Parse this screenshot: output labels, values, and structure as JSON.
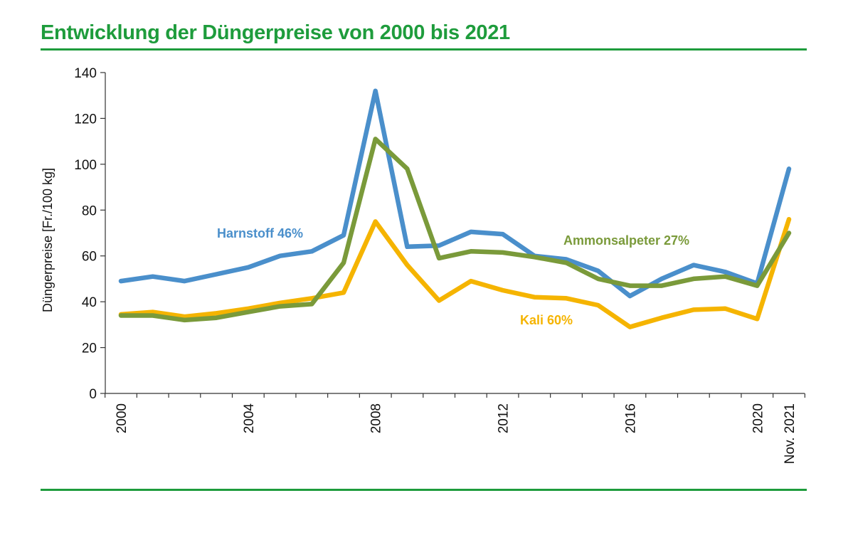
{
  "title": "Entwicklung der Düngerpreise von 2000 bis 2021",
  "chart_data": {
    "type": "line",
    "title": "Entwicklung der Düngerpreise von 2000 bis 2021",
    "xlabel": "",
    "ylabel": "Düngerpreise [Fr./100 kg]",
    "ylim": [
      0,
      140
    ],
    "yticks": [
      0,
      20,
      40,
      60,
      80,
      100,
      120,
      140
    ],
    "x": [
      2000,
      2001,
      2002,
      2003,
      2004,
      2005,
      2006,
      2007,
      2008,
      2009,
      2010,
      2011,
      2012,
      2013,
      2014,
      2015,
      2016,
      2017,
      2018,
      2019,
      2020,
      2021
    ],
    "xtick_labels": [
      {
        "x": 2000,
        "label": "2000"
      },
      {
        "x": 2004,
        "label": "2004"
      },
      {
        "x": 2008,
        "label": "2008"
      },
      {
        "x": 2012,
        "label": "2012"
      },
      {
        "x": 2016,
        "label": "2016"
      },
      {
        "x": 2020,
        "label": "2020"
      },
      {
        "x": 2021,
        "label": "Nov. 2021"
      }
    ],
    "grid": false,
    "series": [
      {
        "name": "Harnstoff 46%",
        "color": "#4a8fcb",
        "values": [
          49,
          51,
          49,
          52,
          55,
          60,
          62,
          69,
          132,
          64,
          64.5,
          70.5,
          69.5,
          60,
          58.5,
          53.5,
          42.5,
          50,
          56,
          53,
          48,
          98
        ]
      },
      {
        "name": "Kali 60%",
        "color": "#f5b400",
        "values": [
          34.5,
          35.5,
          33.5,
          35,
          37,
          39.5,
          41.5,
          44,
          75,
          56,
          40.5,
          49,
          45,
          42,
          41.5,
          38.5,
          29,
          33,
          36.5,
          37,
          32.5,
          76
        ]
      },
      {
        "name": "Ammonsalpeter 27%",
        "color": "#7a9a3a",
        "values": [
          34,
          34,
          32,
          33,
          35.5,
          38,
          39,
          57,
          111,
          98,
          59,
          62,
          61.5,
          59.5,
          57,
          50,
          47,
          47,
          50,
          51,
          47,
          70
        ]
      }
    ]
  }
}
